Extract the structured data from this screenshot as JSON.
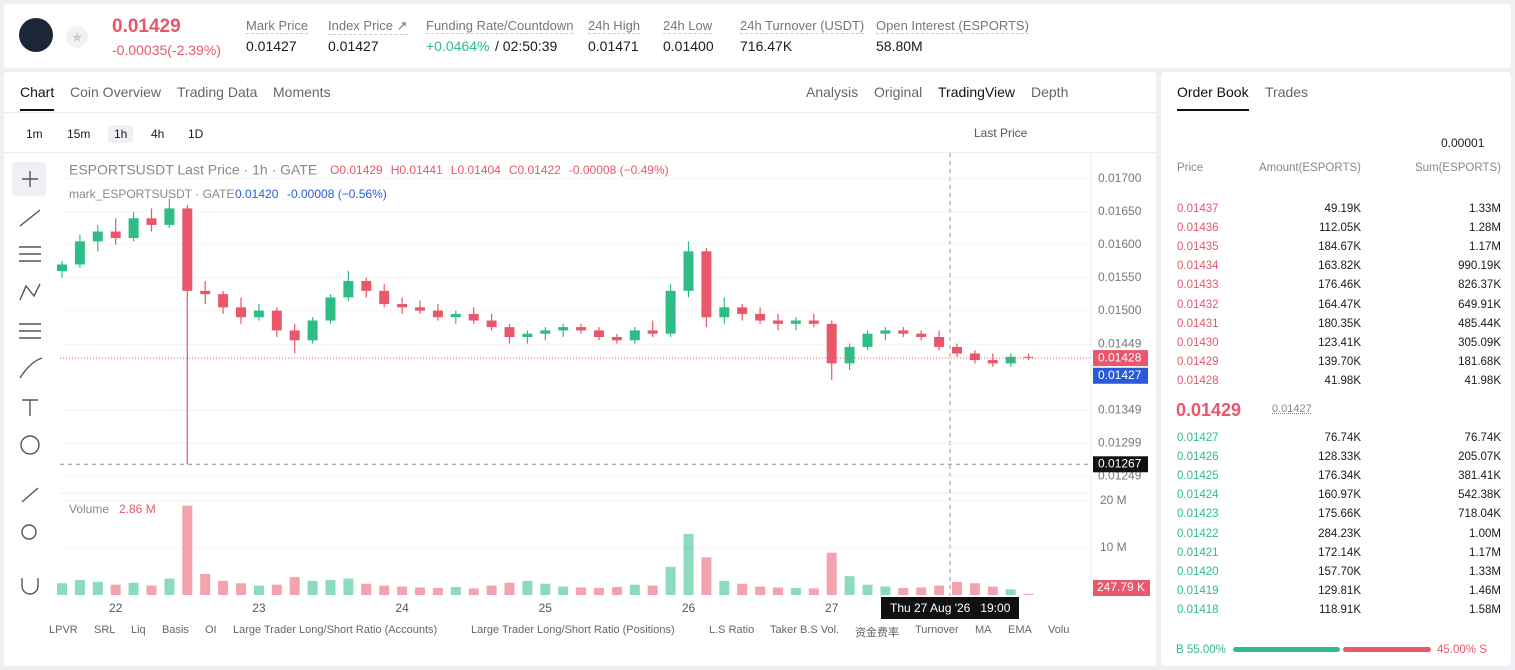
{
  "header": {
    "price": "0.01429",
    "change": "-0.00035(-2.39%)",
    "stats": [
      {
        "label": "Mark Price",
        "value": "0.01427"
      },
      {
        "label": "Index Price ↗",
        "value": "0.01427"
      },
      {
        "label": "Funding Rate/Countdown",
        "value": "+0.0464%",
        "countdown": "/ 02:50:39"
      },
      {
        "label": "24h High",
        "value": "0.01471"
      },
      {
        "label": "24h Low",
        "value": "0.01400"
      },
      {
        "label": "24h Turnover (USDT)",
        "value": "716.47K"
      },
      {
        "label": "Open Interest (ESPORTS)",
        "value": "58.80M"
      }
    ]
  },
  "tabs": {
    "left": [
      "Chart",
      "Coin Overview",
      "Trading Data",
      "Moments"
    ],
    "right": [
      "Analysis",
      "Original",
      "TradingView",
      "Depth"
    ]
  },
  "toolbar": {
    "intervals": [
      "1m",
      "15m",
      "1h",
      "4h",
      "1D"
    ],
    "price_type": "Last Price"
  },
  "indicators": [
    "LPVR",
    "SRL",
    "Liq",
    "Basis",
    "OI",
    "Large Trader Long/Short Ratio (Accounts)",
    "Large Trader Long/Short Ratio (Positions)",
    "L.S Ratio",
    "Taker B.S Vol.",
    "资金费率",
    "Turnover",
    "MA",
    "EMA",
    "Volu"
  ],
  "chart_data": {
    "type": "candlestick",
    "legend": {
      "title": "ESPORTSUSDT Last Price · 1h · GATE",
      "ohlc": [
        "O0.01429",
        "H0.01441",
        "L0.01404",
        "C0.01422"
      ],
      "change": "-0.00008 (−0.49%)",
      "mark_title": "mark_ESPORTSUSDT · GATE",
      "mark_value": "0.01420",
      "mark_change": "-0.00008 (−0.56%)",
      "volume_title": "Volume",
      "volume_value": "2.86 M"
    },
    "categories": [
      null,
      null,
      null,
      "22",
      null,
      null,
      null,
      null,
      null,
      null,
      null,
      "23",
      null,
      null,
      null,
      null,
      null,
      null,
      null,
      "24",
      null,
      null,
      null,
      null,
      null,
      null,
      null,
      "25",
      null,
      null,
      null,
      null,
      null,
      null,
      null,
      "26",
      null,
      null,
      null,
      null,
      null,
      null,
      null,
      "27",
      null,
      null,
      null,
      null,
      null,
      null,
      null,
      null,
      null,
      null,
      null
    ],
    "candles": [
      [
        0.0156,
        0.01575,
        0.0155,
        0.0157
      ],
      [
        0.0157,
        0.01615,
        0.01565,
        0.01605
      ],
      [
        0.01605,
        0.0163,
        0.0159,
        0.0162
      ],
      [
        0.0162,
        0.0164,
        0.016,
        0.0161
      ],
      [
        0.0161,
        0.0165,
        0.01605,
        0.0164
      ],
      [
        0.0164,
        0.01655,
        0.0162,
        0.0163
      ],
      [
        0.0163,
        0.0167,
        0.01625,
        0.01655
      ],
      [
        0.01655,
        0.0166,
        0.01267,
        0.0153
      ],
      [
        0.0153,
        0.01545,
        0.0151,
        0.01525
      ],
      [
        0.01525,
        0.0153,
        0.01495,
        0.01505
      ],
      [
        0.01505,
        0.0152,
        0.0148,
        0.0149
      ],
      [
        0.0149,
        0.0151,
        0.01485,
        0.015
      ],
      [
        0.015,
        0.01505,
        0.0146,
        0.0147
      ],
      [
        0.0147,
        0.0148,
        0.01435,
        0.01455
      ],
      [
        0.01455,
        0.0149,
        0.0145,
        0.01485
      ],
      [
        0.01485,
        0.01525,
        0.0148,
        0.0152
      ],
      [
        0.0152,
        0.0156,
        0.01515,
        0.01545
      ],
      [
        0.01545,
        0.0155,
        0.0152,
        0.0153
      ],
      [
        0.0153,
        0.0154,
        0.01505,
        0.0151
      ],
      [
        0.0151,
        0.0152,
        0.01495,
        0.01505
      ],
      [
        0.01505,
        0.01515,
        0.01495,
        0.015
      ],
      [
        0.015,
        0.0151,
        0.01485,
        0.0149
      ],
      [
        0.0149,
        0.015,
        0.0148,
        0.01495
      ],
      [
        0.01495,
        0.01505,
        0.0148,
        0.01485
      ],
      [
        0.01485,
        0.01495,
        0.0147,
        0.01475
      ],
      [
        0.01475,
        0.0148,
        0.0145,
        0.0146
      ],
      [
        0.0146,
        0.0147,
        0.0145,
        0.01465
      ],
      [
        0.01465,
        0.01475,
        0.01455,
        0.0147
      ],
      [
        0.0147,
        0.0148,
        0.0146,
        0.01475
      ],
      [
        0.01475,
        0.0148,
        0.01465,
        0.0147
      ],
      [
        0.0147,
        0.01475,
        0.01455,
        0.0146
      ],
      [
        0.0146,
        0.01465,
        0.0145,
        0.01455
      ],
      [
        0.01455,
        0.01475,
        0.0145,
        0.0147
      ],
      [
        0.0147,
        0.01485,
        0.0146,
        0.01465
      ],
      [
        0.01465,
        0.0154,
        0.0146,
        0.0153
      ],
      [
        0.0153,
        0.01605,
        0.0152,
        0.0159
      ],
      [
        0.0159,
        0.01595,
        0.01475,
        0.0149
      ],
      [
        0.0149,
        0.0152,
        0.0148,
        0.01505
      ],
      [
        0.01505,
        0.0151,
        0.01485,
        0.01495
      ],
      [
        0.01495,
        0.01505,
        0.0148,
        0.01485
      ],
      [
        0.01485,
        0.01495,
        0.0147,
        0.0148
      ],
      [
        0.0148,
        0.0149,
        0.0147,
        0.01485
      ],
      [
        0.01485,
        0.01495,
        0.01475,
        0.0148
      ],
      [
        0.0148,
        0.01485,
        0.01395,
        0.0142
      ],
      [
        0.0142,
        0.0145,
        0.0141,
        0.01445
      ],
      [
        0.01445,
        0.0147,
        0.0144,
        0.01465
      ],
      [
        0.01465,
        0.01475,
        0.01455,
        0.0147
      ],
      [
        0.0147,
        0.01475,
        0.0146,
        0.01465
      ],
      [
        0.01465,
        0.0147,
        0.01455,
        0.0146
      ],
      [
        0.0146,
        0.0147,
        0.0144,
        0.01445
      ],
      [
        0.01445,
        0.0145,
        0.0143,
        0.01435
      ],
      [
        0.01435,
        0.0144,
        0.0142,
        0.01425
      ],
      [
        0.01425,
        0.01435,
        0.01415,
        0.0142
      ],
      [
        0.0142,
        0.01435,
        0.01415,
        0.0143
      ],
      [
        0.0143,
        0.01435,
        0.01425,
        0.01429
      ]
    ],
    "volumes": [
      2.5,
      3.2,
      2.8,
      2.2,
      2.6,
      2.0,
      3.5,
      19.0,
      4.5,
      3.0,
      2.5,
      2.0,
      2.2,
      3.8,
      3.0,
      3.2,
      3.5,
      2.4,
      2.0,
      1.8,
      1.6,
      1.5,
      1.7,
      1.4,
      2.0,
      2.6,
      3.0,
      2.4,
      1.8,
      1.6,
      1.5,
      1.7,
      2.2,
      2.0,
      6.0,
      13.0,
      8.0,
      3.0,
      2.4,
      1.8,
      1.6,
      1.5,
      1.4,
      9.0,
      4.0,
      2.2,
      1.8,
      1.5,
      1.6,
      2.0,
      2.8,
      2.5,
      1.8,
      1.2,
      0.25
    ],
    "up_color": "#2ebd85",
    "down_color": "#e8576a",
    "ylim": [
      0.01228,
      0.01736
    ],
    "yticks": [
      {
        "value": 0.017,
        "label": "0.01700"
      },
      {
        "value": 0.0165,
        "label": "0.01650"
      },
      {
        "value": 0.016,
        "label": "0.01600"
      },
      {
        "value": 0.0155,
        "label": "0.01550"
      },
      {
        "value": 0.015,
        "label": "0.01500"
      },
      {
        "value": 0.01449,
        "label": "0.01449"
      },
      {
        "value": 0.01349,
        "label": "0.01349"
      },
      {
        "value": 0.01299,
        "label": "0.01299"
      },
      {
        "value": 0.01249,
        "label": "0.01249"
      }
    ],
    "vlim": [
      0,
      22
    ],
    "vticks": [
      {
        "value": 20,
        "label": "20 M"
      },
      {
        "value": 10,
        "label": "10 M"
      }
    ],
    "last_price": 0.01428,
    "mark_price": 0.01427,
    "crosshair_price": 0.01267,
    "volume_now": "247.79 K",
    "crosshair_time": "Thu 27 Aug '26   19:00"
  },
  "order_book": {
    "tabs": [
      "Order Book",
      "Trades"
    ],
    "precision": "0.00001",
    "headers": [
      "Price",
      "Amount(ESPORTS)",
      "Sum(ESPORTS)"
    ],
    "asks": [
      [
        "0.01437",
        "49.19K",
        "1.33M"
      ],
      [
        "0.01436",
        "112.05K",
        "1.28M"
      ],
      [
        "0.01435",
        "184.67K",
        "1.17M"
      ],
      [
        "0.01434",
        "163.82K",
        "990.19K"
      ],
      [
        "0.01433",
        "176.46K",
        "826.37K"
      ],
      [
        "0.01432",
        "164.47K",
        "649.91K"
      ],
      [
        "0.01431",
        "180.35K",
        "485.44K"
      ],
      [
        "0.01430",
        "123.41K",
        "305.09K"
      ],
      [
        "0.01429",
        "139.70K",
        "181.68K"
      ],
      [
        "0.01428",
        "41.98K",
        "41.98K"
      ]
    ],
    "mid_price": "0.01429",
    "mid_mark": "0.01427",
    "bids": [
      [
        "0.01427",
        "76.74K",
        "76.74K"
      ],
      [
        "0.01426",
        "128.33K",
        "205.07K"
      ],
      [
        "0.01425",
        "176.34K",
        "381.41K"
      ],
      [
        "0.01424",
        "160.97K",
        "542.38K"
      ],
      [
        "0.01423",
        "175.66K",
        "718.04K"
      ],
      [
        "0.01422",
        "284.23K",
        "1.00M"
      ],
      [
        "0.01421",
        "172.14K",
        "1.17M"
      ],
      [
        "0.01420",
        "157.70K",
        "1.33M"
      ],
      [
        "0.01419",
        "129.81K",
        "1.46M"
      ],
      [
        "0.01418",
        "118.91K",
        "1.58M"
      ]
    ],
    "ratio": {
      "buy": 55,
      "buy_label": "B 55.00%",
      "sell": 45,
      "sell_label": "45.00% S"
    }
  }
}
